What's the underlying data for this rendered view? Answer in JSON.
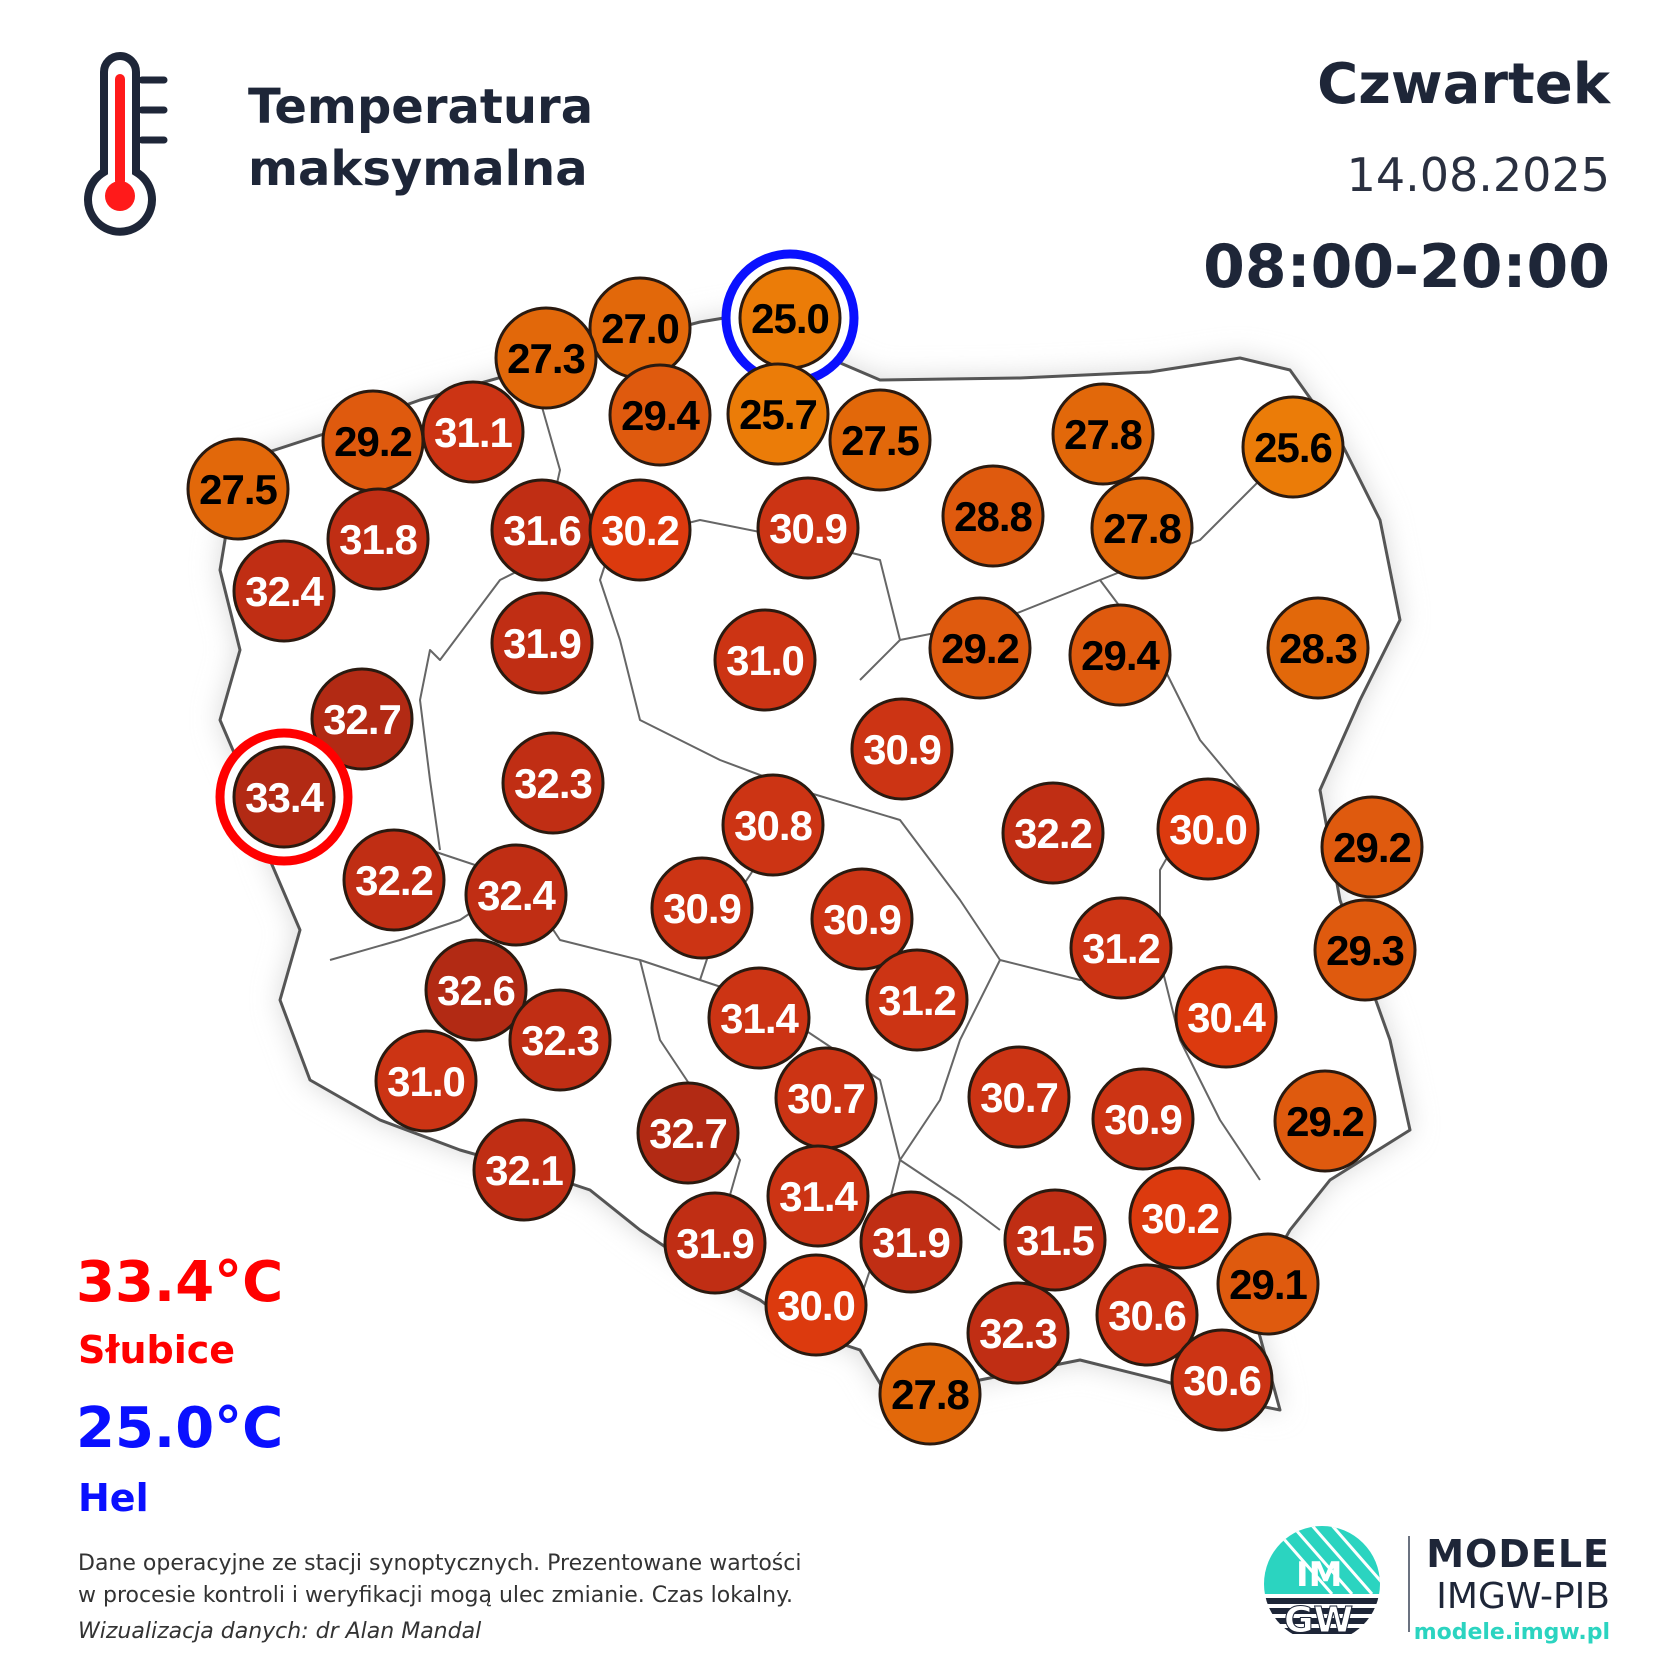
{
  "header": {
    "title_line1": "Temperatura",
    "title_line2": "maksymalna",
    "day": "Czwartek",
    "date": "14.08.2025",
    "hours": "08:00-20:00"
  },
  "extremes": {
    "max_value": "33.4°C",
    "max_station": "Słubice",
    "min_value": "25.0°C",
    "min_station": "Hel"
  },
  "footer": {
    "line1": "Dane operacyjne ze stacji synoptycznych. Prezentowane wartości",
    "line2": "w procesie kontroli i weryfikacji mogą ulec zmianie. Czas lokalny.",
    "line3": "Wizualizacja danych: dr Alan Mandal"
  },
  "brand": {
    "logo_text_top": "IM",
    "logo_text_bottom": "GW",
    "name": "MODELE",
    "org": "IMGW-PIB",
    "url": "modele.imgw.pl"
  },
  "colors": {
    "max_highlight": "#ff0000",
    "min_highlight": "#0a10ff",
    "text_dark": "#1e2638",
    "brand_accent": "#2bd4c0"
  },
  "stations": [
    {
      "value": "25.0",
      "highlight": "min"
    },
    {
      "value": "27.0"
    },
    {
      "value": "27.3"
    },
    {
      "value": "29.4"
    },
    {
      "value": "25.7"
    },
    {
      "value": "27.5"
    },
    {
      "value": "29.2"
    },
    {
      "value": "31.1"
    },
    {
      "value": "27.5"
    },
    {
      "value": "31.8"
    },
    {
      "value": "32.4"
    },
    {
      "value": "31.6"
    },
    {
      "value": "30.2"
    },
    {
      "value": "30.9"
    },
    {
      "value": "28.8"
    },
    {
      "value": "27.8"
    },
    {
      "value": "27.8"
    },
    {
      "value": "25.6"
    },
    {
      "value": "31.9"
    },
    {
      "value": "31.0"
    },
    {
      "value": "29.2"
    },
    {
      "value": "29.4"
    },
    {
      "value": "28.3"
    },
    {
      "value": "32.7"
    },
    {
      "value": "33.4",
      "highlight": "max"
    },
    {
      "value": "32.3"
    },
    {
      "value": "30.9"
    },
    {
      "value": "30.8"
    },
    {
      "value": "32.2"
    },
    {
      "value": "30.0"
    },
    {
      "value": "29.2"
    },
    {
      "value": "32.2"
    },
    {
      "value": "32.4"
    },
    {
      "value": "30.9"
    },
    {
      "value": "30.9"
    },
    {
      "value": "31.2"
    },
    {
      "value": "29.3"
    },
    {
      "value": "32.6"
    },
    {
      "value": "32.3"
    },
    {
      "value": "31.4"
    },
    {
      "value": "31.2"
    },
    {
      "value": "30.4"
    },
    {
      "value": "31.0"
    },
    {
      "value": "30.7"
    },
    {
      "value": "30.7"
    },
    {
      "value": "30.9"
    },
    {
      "value": "29.2"
    },
    {
      "value": "32.7"
    },
    {
      "value": "32.1"
    },
    {
      "value": "31.4"
    },
    {
      "value": "31.9"
    },
    {
      "value": "31.9"
    },
    {
      "value": "31.5"
    },
    {
      "value": "30.2"
    },
    {
      "value": "29.1"
    },
    {
      "value": "30.0"
    },
    {
      "value": "32.3"
    },
    {
      "value": "30.6"
    },
    {
      "value": "30.6"
    },
    {
      "value": "27.8"
    }
  ]
}
